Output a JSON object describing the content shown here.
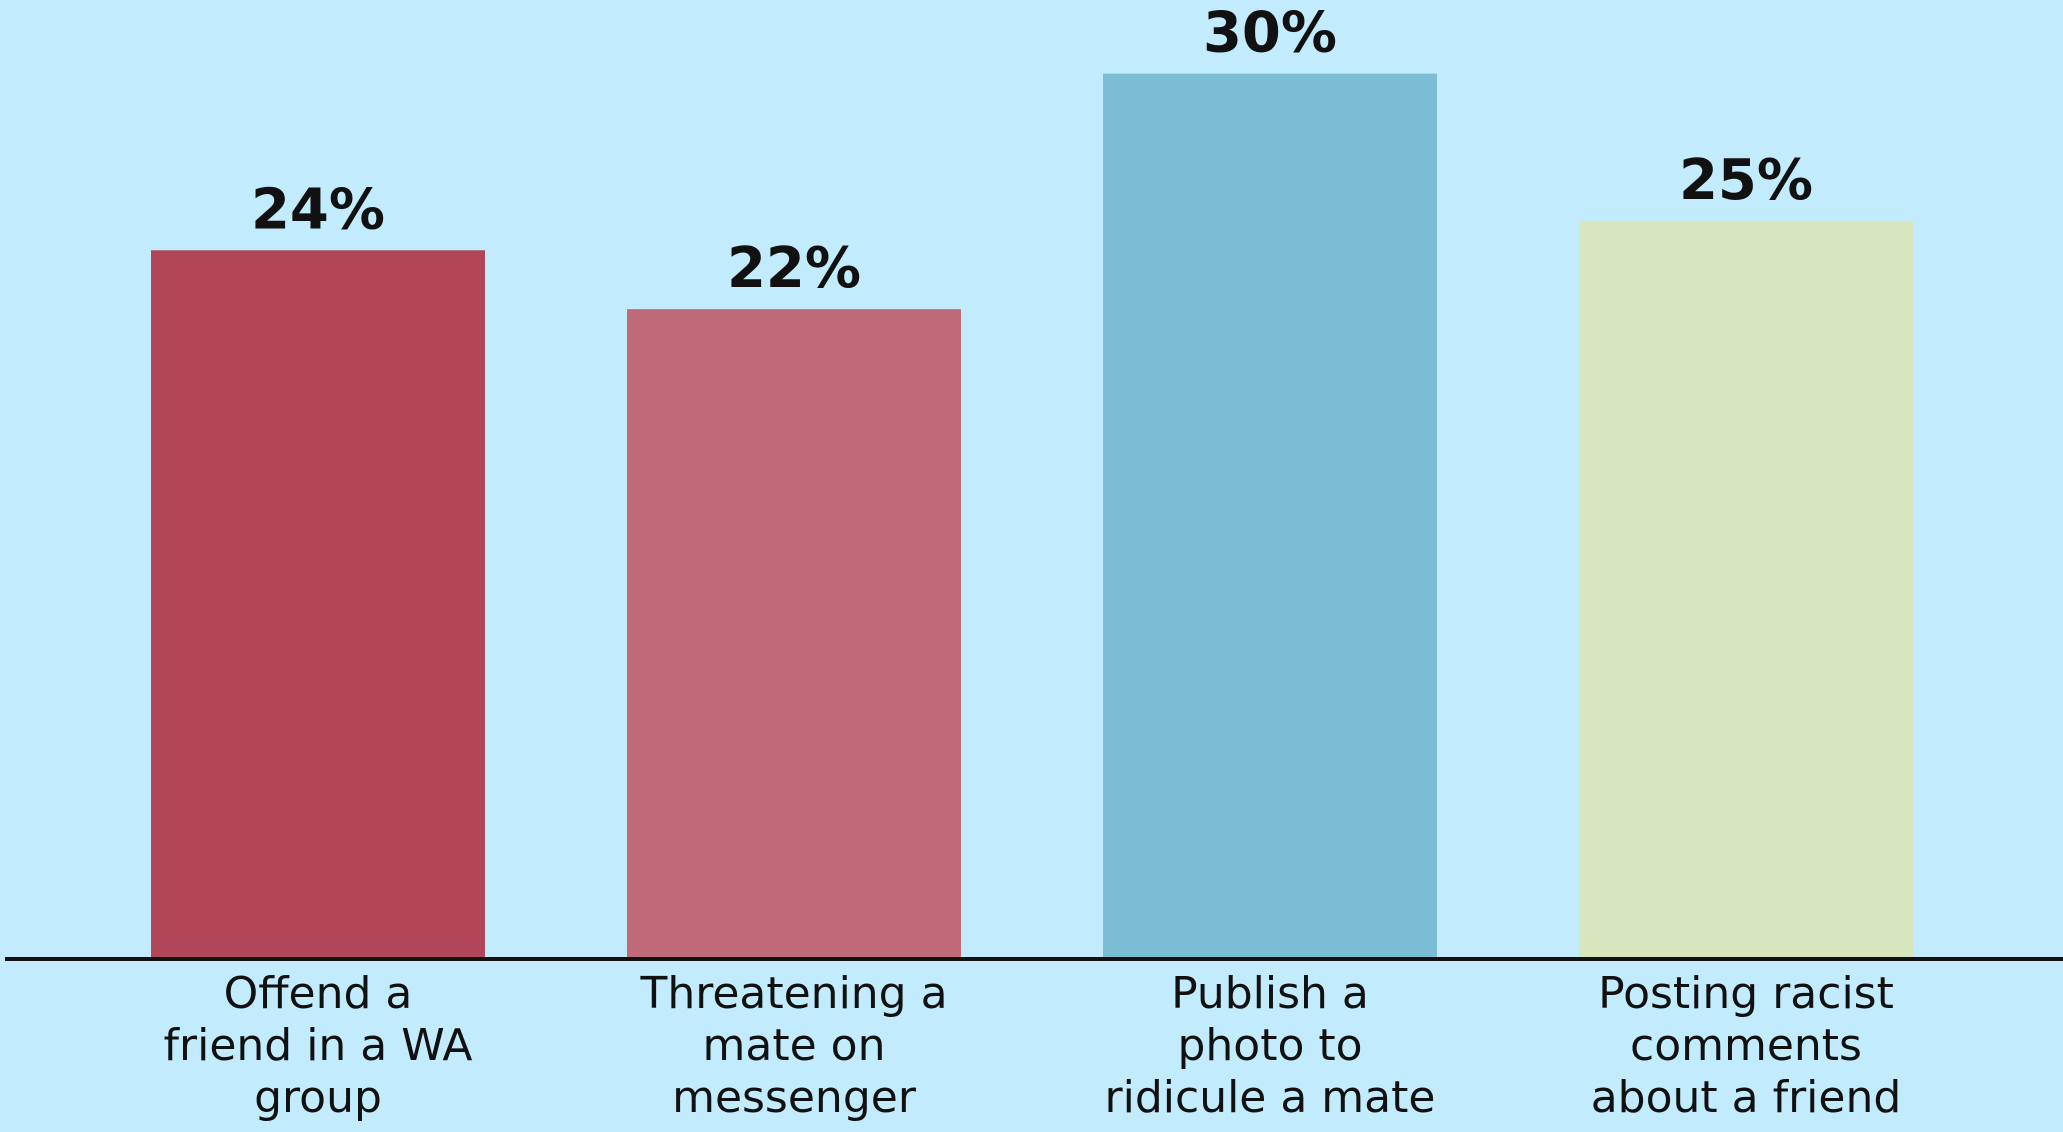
{
  "chart_data": {
    "type": "bar",
    "categories": [
      [
        "Offend a",
        "friend in a WA",
        "group"
      ],
      [
        "Threatening a",
        "mate on",
        "messenger"
      ],
      [
        "Publish a",
        "photo to",
        "ridicule a mate"
      ],
      [
        "Posting racist",
        "comments",
        "about a friend"
      ]
    ],
    "values": [
      24,
      22,
      30,
      25
    ],
    "value_labels": [
      "24%",
      "22%",
      "30%",
      "25%"
    ],
    "ylim": [
      0,
      32.5
    ],
    "bar_colors": [
      "#b04657",
      "#c06a78",
      "#7cbdd6",
      "#d7e6bc"
    ],
    "grid": false,
    "legend": "none"
  },
  "colors": {
    "background": "#c2ecfd",
    "axis": "#111111",
    "text": "#111111"
  }
}
